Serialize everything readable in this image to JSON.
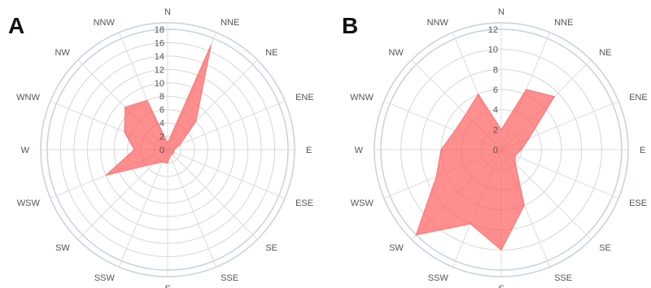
{
  "chart_data": [
    {
      "type": "radar",
      "panel_label": "A",
      "directions": [
        "N",
        "NNE",
        "NE",
        "ENE",
        "E",
        "ESE",
        "SE",
        "SSE",
        "S",
        "SSW",
        "SW",
        "WSW",
        "W",
        "WNW",
        "NW",
        "NNW"
      ],
      "rlim": [
        0,
        18
      ],
      "ticks": [
        "0",
        "2",
        "4",
        "6",
        "8",
        "10",
        "12",
        "14",
        "16",
        "18"
      ],
      "values": [
        1,
        17,
        6,
        2,
        1,
        1,
        1,
        1,
        2,
        2,
        3,
        10,
        5,
        7,
        9,
        8
      ],
      "color": "#ff6b6b"
    },
    {
      "type": "radar",
      "panel_label": "B",
      "directions": [
        "N",
        "NNE",
        "NE",
        "ENE",
        "E",
        "ESE",
        "SE",
        "SSE",
        "S",
        "SSW",
        "SW",
        "WSW",
        "W",
        "WNW",
        "NW",
        "NNW"
      ],
      "rlim": [
        0,
        12
      ],
      "ticks": [
        "0",
        "2",
        "4",
        "6",
        "8",
        "10",
        "12"
      ],
      "values": [
        2,
        6.5,
        7.5,
        3,
        2,
        1.5,
        2,
        6,
        10,
        8,
        12,
        7,
        6,
        5,
        5,
        6
      ],
      "color": "#ff6b6b"
    }
  ]
}
